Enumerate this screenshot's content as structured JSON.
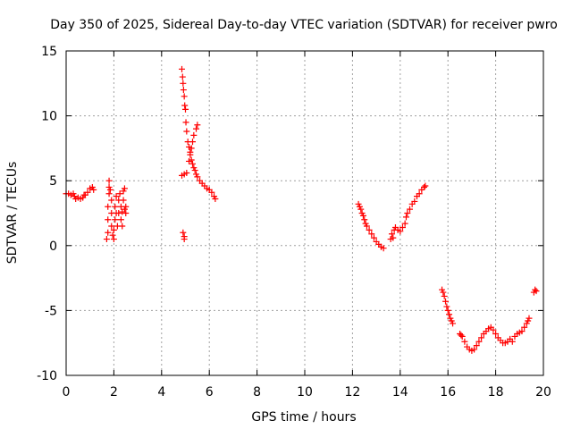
{
  "chart_data": {
    "type": "scatter",
    "title": "Day 350 of 2025, Sidereal Day-to-day VTEC variation (SDTVAR) for receiver pwro",
    "xlabel": "GPS time / hours",
    "ylabel": "SDTVAR / TECUs",
    "xlim": [
      0,
      20
    ],
    "ylim": [
      -10,
      15
    ],
    "xticks": [
      0,
      2,
      4,
      6,
      8,
      10,
      12,
      14,
      16,
      18,
      20
    ],
    "yticks": [
      -10,
      -5,
      0,
      5,
      10,
      15
    ],
    "grid": true,
    "marker": "plus",
    "color": "#ff0000",
    "series": [
      {
        "name": "SDTVAR",
        "points": [
          [
            0.0,
            4.0
          ],
          [
            0.1,
            4.0
          ],
          [
            0.2,
            3.9
          ],
          [
            0.3,
            4.0
          ],
          [
            0.35,
            3.8
          ],
          [
            0.4,
            3.6
          ],
          [
            0.5,
            3.7
          ],
          [
            0.6,
            3.6
          ],
          [
            0.7,
            3.7
          ],
          [
            0.75,
            3.9
          ],
          [
            0.8,
            3.9
          ],
          [
            0.9,
            4.1
          ],
          [
            1.0,
            4.4
          ],
          [
            1.1,
            4.5
          ],
          [
            1.15,
            4.3
          ],
          [
            1.7,
            0.5
          ],
          [
            1.75,
            1.0
          ],
          [
            1.75,
            2.0
          ],
          [
            1.75,
            3.0
          ],
          [
            1.8,
            4.0
          ],
          [
            1.8,
            4.5
          ],
          [
            1.8,
            5.0
          ],
          [
            1.85,
            4.3
          ],
          [
            1.9,
            3.5
          ],
          [
            1.9,
            2.5
          ],
          [
            1.9,
            1.5
          ],
          [
            1.95,
            0.8
          ],
          [
            2.0,
            0.5
          ],
          [
            2.0,
            1.2
          ],
          [
            2.05,
            2.0
          ],
          [
            2.05,
            3.0
          ],
          [
            2.1,
            3.8
          ],
          [
            2.1,
            2.5
          ],
          [
            2.15,
            1.5
          ],
          [
            2.2,
            2.5
          ],
          [
            2.2,
            3.5
          ],
          [
            2.25,
            4.0
          ],
          [
            2.3,
            3.0
          ],
          [
            2.3,
            2.0
          ],
          [
            2.35,
            1.5
          ],
          [
            2.35,
            2.6
          ],
          [
            2.4,
            3.5
          ],
          [
            2.4,
            4.2
          ],
          [
            2.45,
            4.4
          ],
          [
            2.45,
            2.8
          ],
          [
            2.5,
            2.5
          ],
          [
            2.5,
            3.0
          ],
          [
            4.85,
            13.6
          ],
          [
            4.88,
            13.0
          ],
          [
            4.9,
            12.5
          ],
          [
            4.92,
            12.0
          ],
          [
            4.95,
            11.5
          ],
          [
            4.97,
            10.8
          ],
          [
            5.0,
            10.5
          ],
          [
            5.02,
            9.5
          ],
          [
            5.05,
            8.8
          ],
          [
            5.1,
            8.0
          ],
          [
            5.15,
            7.6
          ],
          [
            5.2,
            7.2
          ],
          [
            5.25,
            6.6
          ],
          [
            5.3,
            6.3
          ],
          [
            5.35,
            6.0
          ],
          [
            5.4,
            5.8
          ],
          [
            5.45,
            5.5
          ],
          [
            5.5,
            5.3
          ],
          [
            5.6,
            5.0
          ],
          [
            5.7,
            4.8
          ],
          [
            5.8,
            4.6
          ],
          [
            5.9,
            4.4
          ],
          [
            6.0,
            4.3
          ],
          [
            6.1,
            4.1
          ],
          [
            6.2,
            3.8
          ],
          [
            6.25,
            3.6
          ],
          [
            4.85,
            5.4
          ],
          [
            4.95,
            5.5
          ],
          [
            5.05,
            5.6
          ],
          [
            5.15,
            6.5
          ],
          [
            5.2,
            7.0
          ],
          [
            5.25,
            7.5
          ],
          [
            5.3,
            8.0
          ],
          [
            5.35,
            8.5
          ],
          [
            5.45,
            9.0
          ],
          [
            5.5,
            9.3
          ],
          [
            4.9,
            1.0
          ],
          [
            4.95,
            0.7
          ],
          [
            4.95,
            0.5
          ],
          [
            12.25,
            3.2
          ],
          [
            12.3,
            3.0
          ],
          [
            12.35,
            2.8
          ],
          [
            12.4,
            2.5
          ],
          [
            12.45,
            2.3
          ],
          [
            12.5,
            2.0
          ],
          [
            12.55,
            1.7
          ],
          [
            12.6,
            1.5
          ],
          [
            12.7,
            1.2
          ],
          [
            12.8,
            0.9
          ],
          [
            12.9,
            0.6
          ],
          [
            13.0,
            0.3
          ],
          [
            13.1,
            0.1
          ],
          [
            13.2,
            -0.1
          ],
          [
            13.3,
            -0.2
          ],
          [
            13.6,
            0.5
          ],
          [
            13.65,
            0.9
          ],
          [
            13.7,
            0.6
          ],
          [
            13.75,
            1.2
          ],
          [
            13.8,
            1.4
          ],
          [
            13.9,
            1.2
          ],
          [
            14.0,
            1.1
          ],
          [
            14.1,
            1.4
          ],
          [
            14.2,
            1.7
          ],
          [
            14.25,
            2.2
          ],
          [
            14.3,
            2.5
          ],
          [
            14.4,
            2.8
          ],
          [
            14.5,
            3.2
          ],
          [
            14.6,
            3.4
          ],
          [
            14.7,
            3.8
          ],
          [
            14.8,
            4.0
          ],
          [
            14.9,
            4.3
          ],
          [
            15.0,
            4.5
          ],
          [
            15.05,
            4.6
          ],
          [
            15.75,
            -3.4
          ],
          [
            15.8,
            -3.6
          ],
          [
            15.85,
            -3.9
          ],
          [
            15.9,
            -4.3
          ],
          [
            15.95,
            -4.7
          ],
          [
            16.0,
            -5.0
          ],
          [
            16.05,
            -5.3
          ],
          [
            16.1,
            -5.6
          ],
          [
            16.15,
            -5.8
          ],
          [
            16.2,
            -6.0
          ],
          [
            16.5,
            -6.8
          ],
          [
            16.55,
            -6.9
          ],
          [
            16.6,
            -7.0
          ],
          [
            16.7,
            -7.4
          ],
          [
            16.8,
            -7.8
          ],
          [
            16.9,
            -8.0
          ],
          [
            17.0,
            -8.1
          ],
          [
            17.1,
            -8.0
          ],
          [
            17.2,
            -7.7
          ],
          [
            17.3,
            -7.4
          ],
          [
            17.4,
            -7.1
          ],
          [
            17.5,
            -6.8
          ],
          [
            17.6,
            -6.6
          ],
          [
            17.7,
            -6.4
          ],
          [
            17.8,
            -6.3
          ],
          [
            17.9,
            -6.5
          ],
          [
            18.0,
            -6.8
          ],
          [
            18.1,
            -7.1
          ],
          [
            18.2,
            -7.3
          ],
          [
            18.3,
            -7.5
          ],
          [
            18.4,
            -7.5
          ],
          [
            18.5,
            -7.4
          ],
          [
            18.6,
            -7.2
          ],
          [
            18.7,
            -7.4
          ],
          [
            18.8,
            -7.0
          ],
          [
            18.9,
            -6.8
          ],
          [
            19.0,
            -6.7
          ],
          [
            19.1,
            -6.6
          ],
          [
            19.2,
            -6.3
          ],
          [
            19.3,
            -6.0
          ],
          [
            19.35,
            -5.8
          ],
          [
            19.4,
            -5.6
          ],
          [
            19.6,
            -3.6
          ],
          [
            19.65,
            -3.4
          ],
          [
            19.7,
            -3.5
          ]
        ]
      }
    ]
  }
}
